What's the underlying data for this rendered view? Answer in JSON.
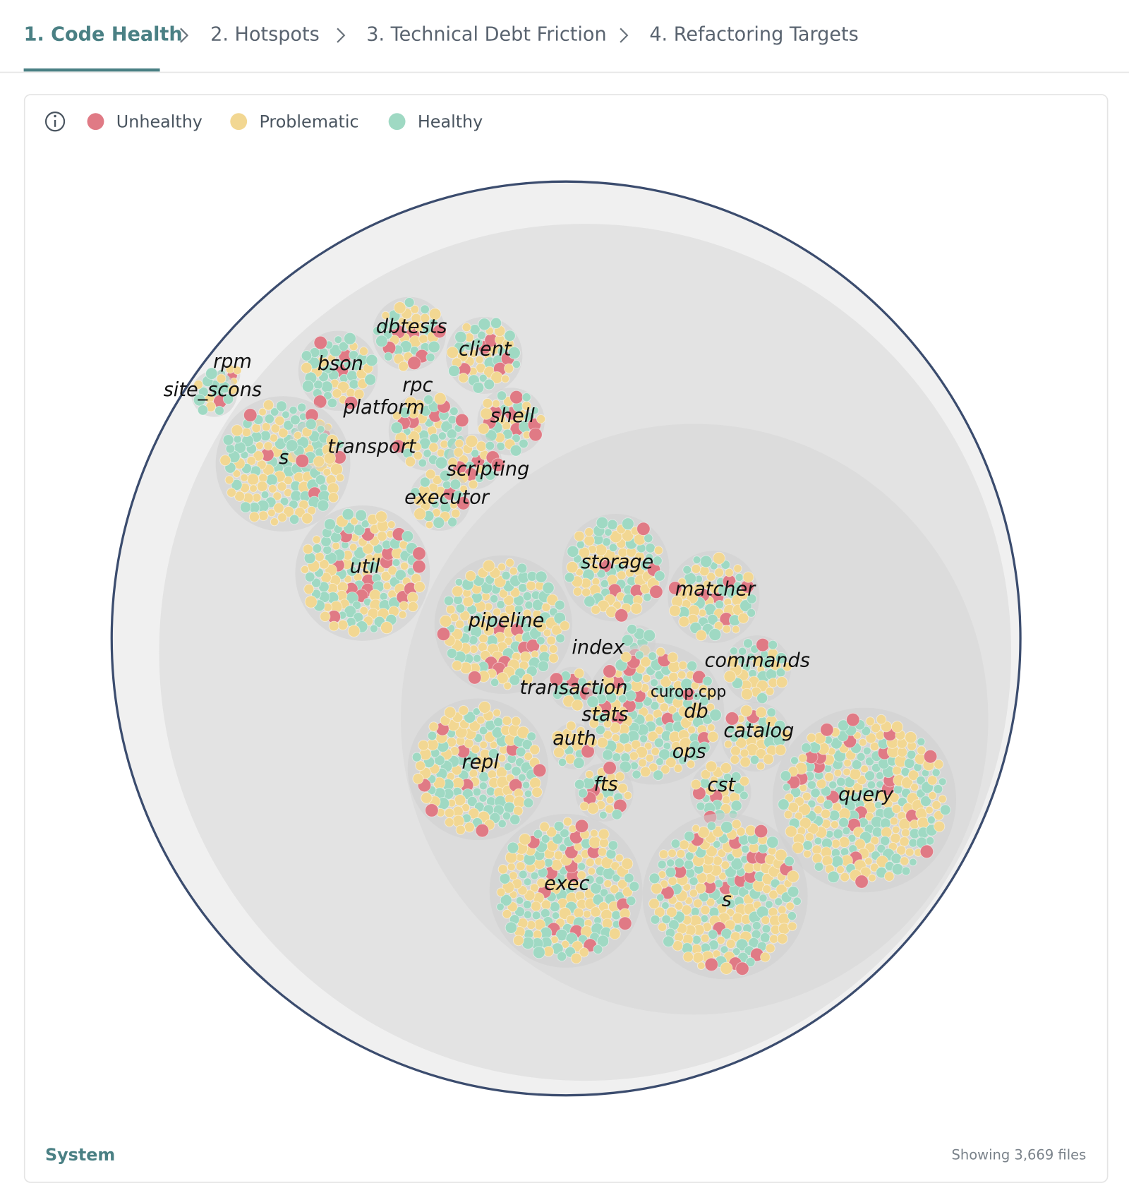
{
  "tabs": [
    "1. Code Health",
    "2. Hotspots",
    "3. Technical Debt Friction",
    "4. Refactoring Targets"
  ],
  "legend": [
    {
      "label": "Unhealthy",
      "color": "#e07a85"
    },
    {
      "label": "Problematic",
      "color": "#f2d792"
    },
    {
      "label": "Healthy",
      "color": "#9fd9c3"
    }
  ],
  "nodes": [
    {
      "label": "rpm"
    },
    {
      "label": "site_scons"
    },
    {
      "label": "dbtests"
    },
    {
      "label": "bson"
    },
    {
      "label": "client"
    },
    {
      "label": "rpc"
    },
    {
      "label": "platform"
    },
    {
      "label": "shell"
    },
    {
      "label": "s"
    },
    {
      "label": "transport"
    },
    {
      "label": "scripting"
    },
    {
      "label": "executor"
    },
    {
      "label": "util"
    },
    {
      "label": "storage"
    },
    {
      "label": "matcher"
    },
    {
      "label": "pipeline"
    },
    {
      "label": "index"
    },
    {
      "label": "commands"
    },
    {
      "label": "transaction"
    },
    {
      "label": "curop.cpp"
    },
    {
      "label": "stats"
    },
    {
      "label": "db"
    },
    {
      "label": "catalog"
    },
    {
      "label": "auth"
    },
    {
      "label": "ops"
    },
    {
      "label": "repl"
    },
    {
      "label": "fts"
    },
    {
      "label": "cst"
    },
    {
      "label": "query"
    },
    {
      "label": "exec"
    },
    {
      "label": "s"
    }
  ],
  "footer": {
    "title": "System",
    "count": "Showing 3,669 files"
  }
}
